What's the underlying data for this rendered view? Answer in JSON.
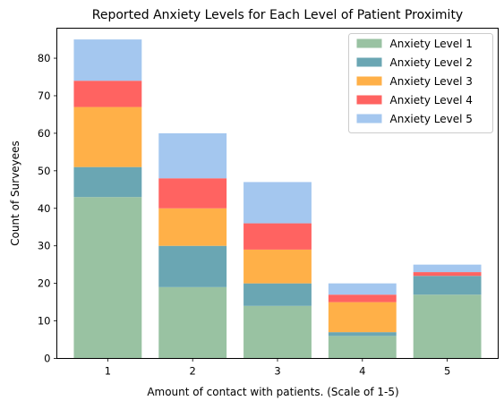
{
  "chart_data": {
    "type": "bar",
    "stacked": true,
    "title": "Reported Anxiety Levels for Each Level of Patient Proximity",
    "xlabel": "Amount of contact with patients. (Scale of 1-5)",
    "ylabel": "Count of Surveyees",
    "categories": [
      "1",
      "2",
      "3",
      "4",
      "5"
    ],
    "ylim": [
      0,
      88
    ],
    "yticks": [
      0,
      10,
      20,
      30,
      40,
      50,
      60,
      70,
      80
    ],
    "grid": false,
    "legend_position": "top-right",
    "series": [
      {
        "name": "Anxiety Level 1",
        "color": "#99c2a2",
        "values": [
          43,
          19,
          14,
          6,
          17
        ]
      },
      {
        "name": "Anxiety Level 2",
        "color": "#6aa6b3",
        "values": [
          8,
          11,
          6,
          1,
          5
        ]
      },
      {
        "name": "Anxiety Level 3",
        "color": "#ffb048",
        "values": [
          16,
          10,
          9,
          8,
          0
        ]
      },
      {
        "name": "Anxiety Level 4",
        "color": "#ff6361",
        "values": [
          7,
          8,
          7,
          2,
          1
        ]
      },
      {
        "name": "Anxiety Level 5",
        "color": "#a4c7ef",
        "values": [
          11,
          12,
          11,
          3,
          2
        ]
      }
    ]
  }
}
